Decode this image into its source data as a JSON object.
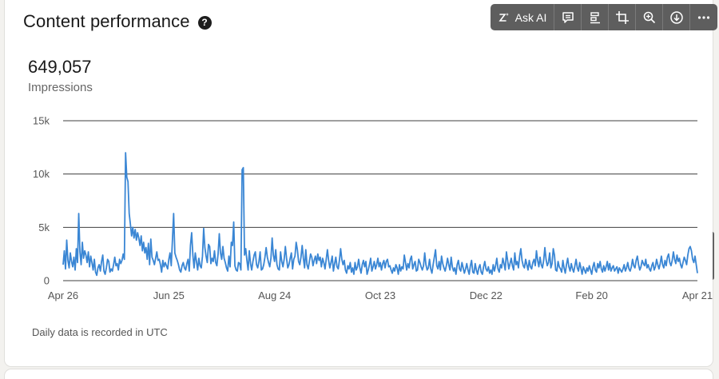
{
  "header": {
    "title": "Content performance",
    "help_glyph": "?"
  },
  "toolbar": {
    "ask_ai_label": "Ask AI",
    "icons": [
      "sparkle-icon",
      "comment-icon",
      "align-icon",
      "crop-icon",
      "zoom-in-icon",
      "download-icon",
      "more-icon"
    ]
  },
  "metric": {
    "value": "649,057",
    "label": "Impressions"
  },
  "footer": {
    "note": "Daily data is recorded in UTC"
  },
  "colors": {
    "line": "#3a86d4",
    "grid": "#3f3f3f",
    "toolbar_bg": "#5e5e5e"
  },
  "chart_data": {
    "type": "line",
    "title": "",
    "xlabel": "",
    "ylabel": "",
    "ylim": [
      0,
      15000
    ],
    "yticks": [
      0,
      5000,
      10000,
      15000
    ],
    "ytick_labels": [
      "0",
      "5k",
      "10k",
      "15k"
    ],
    "xtick_labels": [
      "Apr 26",
      "Jun 25",
      "Aug 24",
      "Oct 23",
      "Dec 22",
      "Feb 20",
      "Apr 21"
    ],
    "grid": true,
    "series": [
      {
        "values": [
          1500,
          2800,
          1100,
          3800,
          1900,
          1200,
          2600,
          1800,
          1300,
          2200,
          1000,
          3000,
          1700,
          6300,
          2700,
          1500,
          3600,
          2100,
          2800,
          2400,
          1700,
          2700,
          1300,
          2300,
          1700,
          1000,
          2000,
          800,
          500,
          1200,
          1500,
          900,
          1800,
          2400,
          900,
          600,
          1200,
          2000,
          1800,
          800,
          1100,
          900,
          1500,
          2200,
          1400,
          1600,
          1000,
          2000,
          1600,
          1900,
          2500,
          2000,
          12000,
          9700,
          9300,
          6300,
          5300,
          4200,
          5000,
          4000,
          4800,
          3800,
          4500,
          4000,
          3300,
          4200,
          2800,
          3600,
          2600,
          3100,
          2000,
          3500,
          1500,
          3900,
          2200,
          1900,
          1500,
          2100,
          2700,
          1900,
          2000,
          1500,
          800,
          1900,
          1300,
          1700,
          1400,
          1100,
          2000,
          2600,
          1400,
          3800,
          6300,
          2600,
          2200,
          1900,
          1500,
          1000,
          800,
          1400,
          1700,
          1200,
          1000,
          1600,
          2000,
          900,
          3300,
          4500,
          2400,
          1200,
          2600,
          1800,
          1000,
          2100,
          1400,
          1200,
          2300,
          4900,
          3100,
          2300,
          1700,
          3400,
          3200,
          1600,
          2100,
          1800,
          2800,
          1700,
          1400,
          2500,
          4400,
          2600,
          2000,
          3200,
          2100,
          1700,
          1200,
          900,
          2300,
          1300,
          3600,
          3300,
          5500,
          1400,
          1000,
          900,
          1700,
          1600,
          1000,
          10400,
          10600,
          2400,
          3000,
          1900,
          1000,
          2800,
          1600,
          1000,
          1800,
          2400,
          2700,
          1500,
          1200,
          1800,
          2700,
          1000,
          1100,
          1500,
          2200,
          3100,
          2200,
          1700,
          1300,
          2100,
          4000,
          2400,
          1800,
          2900,
          1500,
          1100,
          1000,
          2700,
          1800,
          1300,
          2000,
          3200,
          2100,
          1200,
          1500,
          2100,
          2600,
          1100,
          2000,
          2300,
          3600,
          2900,
          1800,
          1500,
          2200,
          3300,
          2100,
          1200,
          2900,
          1500,
          1100,
          1800,
          2500,
          2200,
          1400,
          1900,
          2300,
          1600,
          2500,
          1900,
          2200,
          1300,
          2100,
          1700,
          1100,
          2000,
          2900,
          1900,
          1200,
          1700,
          2300,
          900,
          1600,
          2200,
          1300,
          1100,
          1900,
          3000,
          2000,
          1500,
          1900,
          1000,
          700,
          1400,
          1100,
          1700,
          800,
          1200,
          600,
          1700,
          1000,
          1300,
          2000,
          1200,
          700,
          1500,
          1900,
          1300,
          1800,
          600,
          1000,
          1500,
          2100,
          900,
          1300,
          1800,
          1100,
          1500,
          2100,
          1300,
          1700,
          1000,
          1600,
          1900,
          1200,
          1800,
          2000,
          1300,
          1400,
          1000,
          700,
          1200,
          900,
          1500,
          1200,
          600,
          1500,
          900,
          1300,
          1100,
          2400,
          1700,
          1000,
          1600,
          1200,
          2000,
          2300,
          1100,
          1500,
          1800,
          900,
          1000,
          2000,
          1700,
          1300,
          1000,
          1400,
          2600,
          1500,
          1000,
          1200,
          2000,
          1100,
          700,
          1500,
          2200,
          2900,
          1400,
          1100,
          1800,
          1000,
          2300,
          1600,
          1200,
          900,
          1400,
          2100,
          1500,
          1000,
          2200,
          1300,
          900,
          1200,
          600,
          1500,
          1900,
          1100,
          900,
          1700,
          1200,
          700,
          1100,
          1600,
          1000,
          600,
          1400,
          1900,
          800,
          700,
          1600,
          1000,
          600,
          1200,
          1500,
          800,
          600,
          1300,
          1800,
          1100,
          900,
          1300,
          700,
          1000,
          600,
          1500,
          900,
          1400,
          2100,
          1100,
          800,
          1500,
          1200,
          2100,
          1600,
          1000,
          2700,
          1900,
          1100,
          1600,
          2100,
          1400,
          1000,
          2600,
          1500,
          1800,
          1200,
          2300,
          3000,
          1900,
          1400,
          1200,
          2000,
          1500,
          1000,
          1900,
          1300,
          1100,
          1700,
          2000,
          1400,
          2800,
          1900,
          1300,
          2200,
          1500,
          1200,
          1900,
          3100,
          2000,
          1400,
          1700,
          2600,
          1200,
          1600,
          3000,
          2400,
          1000,
          900,
          1800,
          1300,
          1100,
          800,
          1900,
          1200,
          700,
          1500,
          2100,
          1300,
          900,
          1600,
          1100,
          800,
          1400,
          2000,
          1200,
          900,
          1700,
          1200,
          600,
          1300,
          1000,
          700,
          1200,
          900,
          1400,
          1000,
          600,
          1300,
          1700,
          1000,
          800,
          1600,
          1200,
          1800,
          1100,
          800,
          1400,
          900,
          1300,
          1800,
          1000,
          1600,
          900,
          1200,
          1400,
          900,
          1100,
          1300,
          700,
          1200,
          1000,
          800,
          1100,
          1500,
          900,
          1200,
          1700,
          1100,
          900,
          1300,
          2000,
          1400,
          1200,
          1900,
          2300,
          1500,
          1000,
          1300,
          1900,
          1600,
          1400,
          2000,
          1200,
          1500,
          1100,
          900,
          1400,
          1700,
          1000,
          1300,
          2000,
          1500,
          1100,
          1600,
          2300,
          1500,
          1200,
          1900,
          1400,
          2200,
          2500,
          1700,
          1400,
          1900,
          2700,
          2000,
          1600,
          2400,
          1800,
          2100,
          1500,
          1200,
          1700,
          2200,
          1900,
          1500,
          2400,
          3000,
          3200,
          2800,
          2000,
          1700,
          2300,
          1500,
          700
        ]
      }
    ]
  }
}
